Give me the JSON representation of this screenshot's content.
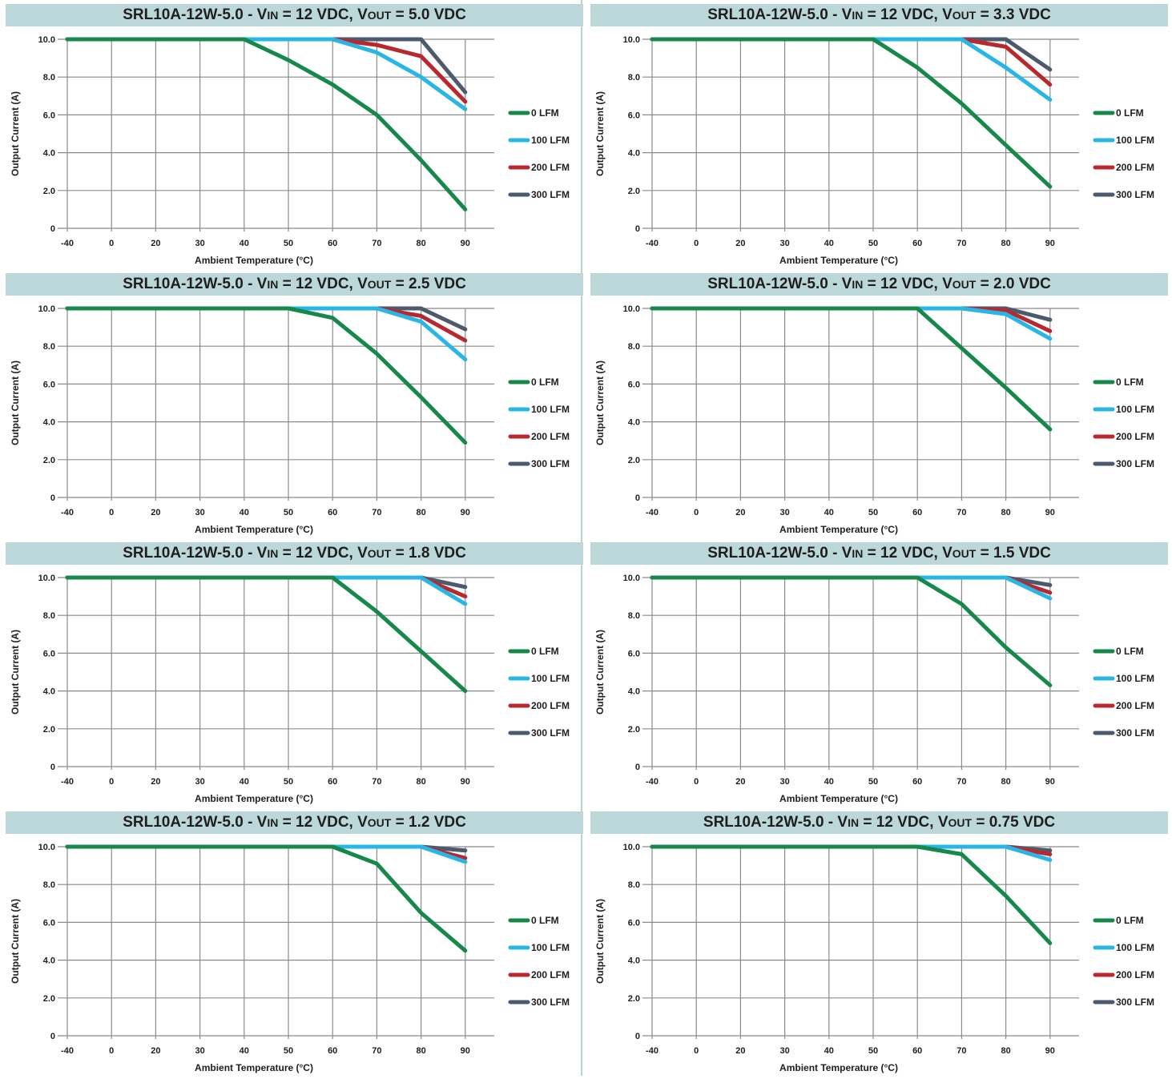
{
  "colors": {
    "title_bar": "#bcd7da",
    "grid": "#8a8a8a",
    "divider": "#b9d4d7",
    "series": [
      "#16884a",
      "#29b6e6",
      "#b8292f",
      "#4d5a6b"
    ]
  },
  "legend": [
    "0 LFM",
    "100 LFM",
    "200 LFM",
    "300 LFM"
  ],
  "x_ticks": [
    "-40",
    "0",
    "20",
    "30",
    "40",
    "50",
    "60",
    "70",
    "80",
    "90"
  ],
  "y_ticks": [
    "0",
    "2.0",
    "4.0",
    "6.0",
    "8.0",
    "10.0"
  ],
  "xlabel": "Ambient Temperature (°C)",
  "ylabel": "Output Current (A)",
  "chart_data": [
    {
      "type": "line",
      "title_prefix": "SRL10A-12W-5.0 - V",
      "title_sub_in": "IN",
      "title_mid": " = 12 VDC, V",
      "title_sub_out": "OUT",
      "title_suffix": " = 5.0 VDC",
      "x": [
        "-40",
        "0",
        "20",
        "30",
        "40",
        "50",
        "60",
        "70",
        "80",
        "90"
      ],
      "xlabel": "Ambient Temperature (°C)",
      "ylabel": "Output Current (A)",
      "ylim": [
        0,
        10
      ],
      "grid": true,
      "legend_position": "right",
      "series": [
        {
          "name": "0 LFM",
          "x": [
            "-40",
            "40",
            "50",
            "60",
            "70",
            "80",
            "90"
          ],
          "values": [
            10,
            10,
            8.9,
            7.6,
            6.0,
            3.6,
            1.0
          ]
        },
        {
          "name": "100 LFM",
          "x": [
            "-40",
            "60",
            "70",
            "80",
            "90"
          ],
          "values": [
            10,
            10,
            9.3,
            8.0,
            6.3
          ]
        },
        {
          "name": "200 LFM",
          "x": [
            "-40",
            "60",
            "70",
            "80",
            "90"
          ],
          "values": [
            10,
            10,
            9.7,
            9.1,
            6.7
          ]
        },
        {
          "name": "300 LFM",
          "x": [
            "-40",
            "80",
            "90"
          ],
          "values": [
            10,
            10,
            7.2
          ]
        }
      ]
    },
    {
      "type": "line",
      "title_prefix": "SRL10A-12W-5.0 - V",
      "title_sub_in": "IN",
      "title_mid": " = 12 VDC, V",
      "title_sub_out": "OUT",
      "title_suffix": " = 3.3 VDC",
      "x": [
        "-40",
        "0",
        "20",
        "30",
        "40",
        "50",
        "60",
        "70",
        "80",
        "90"
      ],
      "xlabel": "Ambient Temperature (°C)",
      "ylabel": "Output Current (A)",
      "ylim": [
        0,
        10
      ],
      "grid": true,
      "legend_position": "right",
      "series": [
        {
          "name": "0 LFM",
          "x": [
            "-40",
            "50",
            "60",
            "70",
            "80",
            "90"
          ],
          "values": [
            10,
            10,
            8.5,
            6.6,
            4.4,
            2.2
          ]
        },
        {
          "name": "100 LFM",
          "x": [
            "-40",
            "70",
            "80",
            "90"
          ],
          "values": [
            10,
            10,
            8.5,
            6.8
          ]
        },
        {
          "name": "200 LFM",
          "x": [
            "-40",
            "70",
            "80",
            "90"
          ],
          "values": [
            10,
            10,
            9.6,
            7.6
          ]
        },
        {
          "name": "300 LFM",
          "x": [
            "-40",
            "80",
            "90"
          ],
          "values": [
            10,
            10,
            8.4
          ]
        }
      ]
    },
    {
      "type": "line",
      "title_prefix": "SRL10A-12W-5.0 - V",
      "title_sub_in": "IN",
      "title_mid": " = 12 VDC, V",
      "title_sub_out": "OUT",
      "title_suffix": " = 2.5 VDC",
      "x": [
        "-40",
        "0",
        "20",
        "30",
        "40",
        "50",
        "60",
        "70",
        "80",
        "90"
      ],
      "xlabel": "Ambient Temperature (°C)",
      "ylabel": "Output Current (A)",
      "ylim": [
        0,
        10
      ],
      "grid": true,
      "legend_position": "right",
      "series": [
        {
          "name": "0 LFM",
          "x": [
            "-40",
            "50",
            "60",
            "70",
            "80",
            "90"
          ],
          "values": [
            10,
            10,
            9.5,
            7.6,
            5.3,
            2.9
          ]
        },
        {
          "name": "100 LFM",
          "x": [
            "-40",
            "70",
            "80",
            "90"
          ],
          "values": [
            10,
            10,
            9.3,
            7.3
          ]
        },
        {
          "name": "200 LFM",
          "x": [
            "-40",
            "70",
            "80",
            "90"
          ],
          "values": [
            10,
            10,
            9.6,
            8.3
          ]
        },
        {
          "name": "300 LFM",
          "x": [
            "-40",
            "80",
            "90"
          ],
          "values": [
            10,
            10,
            8.9
          ]
        }
      ]
    },
    {
      "type": "line",
      "title_prefix": "SRL10A-12W-5.0 - V",
      "title_sub_in": "IN",
      "title_mid": " = 12 VDC, V",
      "title_sub_out": "OUT",
      "title_suffix": " = 2.0 VDC",
      "x": [
        "-40",
        "0",
        "20",
        "30",
        "40",
        "50",
        "60",
        "70",
        "80",
        "90"
      ],
      "xlabel": "Ambient Temperature (°C)",
      "ylabel": "Output Current (A)",
      "ylim": [
        0,
        10
      ],
      "grid": true,
      "legend_position": "right",
      "series": [
        {
          "name": "0 LFM",
          "x": [
            "-40",
            "60",
            "70",
            "80",
            "90"
          ],
          "values": [
            10,
            10,
            7.9,
            5.8,
            3.6
          ]
        },
        {
          "name": "100 LFM",
          "x": [
            "-40",
            "70",
            "80",
            "90"
          ],
          "values": [
            10,
            10,
            9.7,
            8.4
          ]
        },
        {
          "name": "200 LFM",
          "x": [
            "-40",
            "70",
            "80",
            "90"
          ],
          "values": [
            10,
            10,
            9.9,
            8.8
          ]
        },
        {
          "name": "300 LFM",
          "x": [
            "-40",
            "80",
            "90"
          ],
          "values": [
            10,
            10,
            9.4
          ]
        }
      ]
    },
    {
      "type": "line",
      "title_prefix": "SRL10A-12W-5.0 - V",
      "title_sub_in": "IN",
      "title_mid": " = 12 VDC, V",
      "title_sub_out": "OUT",
      "title_suffix": " = 1.8 VDC",
      "x": [
        "-40",
        "0",
        "20",
        "30",
        "40",
        "50",
        "60",
        "70",
        "80",
        "90"
      ],
      "xlabel": "Ambient Temperature (°C)",
      "ylabel": "Output Current (A)",
      "ylim": [
        0,
        10
      ],
      "grid": true,
      "legend_position": "right",
      "series": [
        {
          "name": "0 LFM",
          "x": [
            "-40",
            "60",
            "70",
            "80",
            "90"
          ],
          "values": [
            10,
            10,
            8.2,
            6.1,
            4.0
          ]
        },
        {
          "name": "100 LFM",
          "x": [
            "-40",
            "80",
            "90"
          ],
          "values": [
            10,
            10,
            8.6
          ]
        },
        {
          "name": "200 LFM",
          "x": [
            "-40",
            "80",
            "90"
          ],
          "values": [
            10,
            10,
            9.0
          ]
        },
        {
          "name": "300 LFM",
          "x": [
            "-40",
            "80",
            "90"
          ],
          "values": [
            10,
            10,
            9.5
          ]
        }
      ]
    },
    {
      "type": "line",
      "title_prefix": "SRL10A-12W-5.0 - V",
      "title_sub_in": "IN",
      "title_mid": " = 12 VDC, V",
      "title_sub_out": "OUT",
      "title_suffix": " = 1.5 VDC",
      "x": [
        "-40",
        "0",
        "20",
        "30",
        "40",
        "50",
        "60",
        "70",
        "80",
        "90"
      ],
      "xlabel": "Ambient Temperature (°C)",
      "ylabel": "Output Current (A)",
      "ylim": [
        0,
        10
      ],
      "grid": true,
      "legend_position": "right",
      "series": [
        {
          "name": "0 LFM",
          "x": [
            "-40",
            "60",
            "70",
            "80",
            "90"
          ],
          "values": [
            10,
            10,
            8.6,
            6.3,
            4.3
          ]
        },
        {
          "name": "100 LFM",
          "x": [
            "-40",
            "80",
            "90"
          ],
          "values": [
            10,
            10,
            8.9
          ]
        },
        {
          "name": "200 LFM",
          "x": [
            "-40",
            "80",
            "90"
          ],
          "values": [
            10,
            10,
            9.2
          ]
        },
        {
          "name": "300 LFM",
          "x": [
            "-40",
            "80",
            "90"
          ],
          "values": [
            10,
            10,
            9.6
          ]
        }
      ]
    },
    {
      "type": "line",
      "title_prefix": "SRL10A-12W-5.0 - V",
      "title_sub_in": "IN",
      "title_mid": " = 12 VDC, V",
      "title_sub_out": "OUT",
      "title_suffix": " = 1.2 VDC",
      "x": [
        "-40",
        "0",
        "20",
        "30",
        "40",
        "50",
        "60",
        "70",
        "80",
        "90"
      ],
      "xlabel": "Ambient Temperature (°C)",
      "ylabel": "Output Current (A)",
      "ylim": [
        0,
        10
      ],
      "grid": true,
      "legend_position": "right",
      "series": [
        {
          "name": "0 LFM",
          "x": [
            "-40",
            "60",
            "70",
            "80",
            "90"
          ],
          "values": [
            10,
            10,
            9.1,
            6.5,
            4.5
          ]
        },
        {
          "name": "100 LFM",
          "x": [
            "-40",
            "80",
            "90"
          ],
          "values": [
            10,
            10,
            9.2
          ]
        },
        {
          "name": "200 LFM",
          "x": [
            "-40",
            "80",
            "90"
          ],
          "values": [
            10,
            10,
            9.4
          ]
        },
        {
          "name": "300 LFM",
          "x": [
            "-40",
            "80",
            "90"
          ],
          "values": [
            10,
            10,
            9.8
          ]
        }
      ]
    },
    {
      "type": "line",
      "title_prefix": "SRL10A-12W-5.0 - V",
      "title_sub_in": "IN",
      "title_mid": " = 12 VDC, V",
      "title_sub_out": "OUT",
      "title_suffix": " = 0.75 VDC",
      "x": [
        "-40",
        "0",
        "20",
        "30",
        "40",
        "50",
        "60",
        "70",
        "80",
        "90"
      ],
      "xlabel": "Ambient Temperature (°C)",
      "ylabel": "Output Current (A)",
      "ylim": [
        0,
        10
      ],
      "grid": true,
      "legend_position": "right",
      "series": [
        {
          "name": "0 LFM",
          "x": [
            "-40",
            "60",
            "70",
            "80",
            "90"
          ],
          "values": [
            10,
            10,
            9.6,
            7.4,
            4.9
          ]
        },
        {
          "name": "100 LFM",
          "x": [
            "-40",
            "80",
            "90"
          ],
          "values": [
            10,
            10,
            9.3
          ]
        },
        {
          "name": "200 LFM",
          "x": [
            "-40",
            "80",
            "90"
          ],
          "values": [
            10,
            10,
            9.6
          ]
        },
        {
          "name": "300 LFM",
          "x": [
            "-40",
            "80",
            "90"
          ],
          "values": [
            10,
            10,
            9.8
          ]
        }
      ]
    }
  ]
}
